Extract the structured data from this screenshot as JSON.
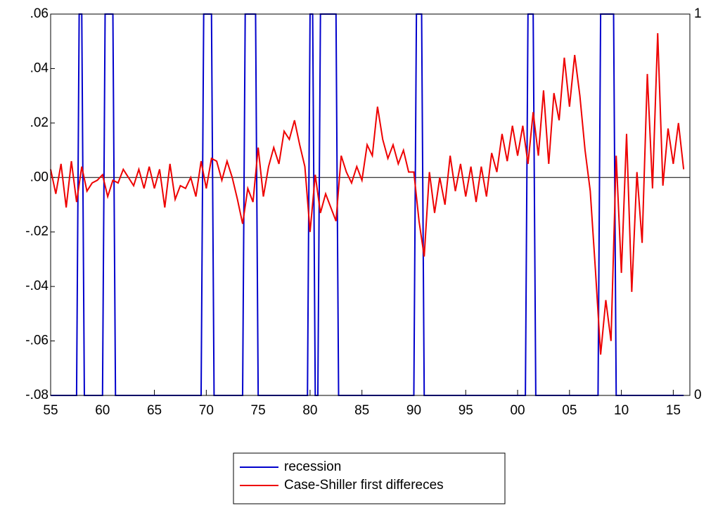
{
  "chart_data": {
    "type": "line",
    "xlim": [
      1955,
      2016.6
    ],
    "xticks": [
      {
        "value": 1955,
        "label": "55"
      },
      {
        "value": 1960,
        "label": "60"
      },
      {
        "value": 1965,
        "label": "65"
      },
      {
        "value": 1970,
        "label": "70"
      },
      {
        "value": 1975,
        "label": "75"
      },
      {
        "value": 1980,
        "label": "80"
      },
      {
        "value": 1985,
        "label": "85"
      },
      {
        "value": 1990,
        "label": "90"
      },
      {
        "value": 1995,
        "label": "95"
      },
      {
        "value": 2000,
        "label": "00"
      },
      {
        "value": 2005,
        "label": "05"
      },
      {
        "value": 2010,
        "label": "10"
      },
      {
        "value": 2015,
        "label": "15"
      }
    ],
    "ylim": [
      -0.08,
      0.06
    ],
    "yticks": [
      {
        "value": 0.06,
        "label": ".06"
      },
      {
        "value": 0.04,
        "label": ".04"
      },
      {
        "value": 0.02,
        "label": ".02"
      },
      {
        "value": 0,
        "label": ".00"
      },
      {
        "value": -0.02,
        "label": "-.02"
      },
      {
        "value": -0.04,
        "label": "-.04"
      },
      {
        "value": -0.06,
        "label": "-.06"
      },
      {
        "value": -0.08,
        "label": "-.08"
      }
    ],
    "y2lim": [
      0,
      1
    ],
    "y2ticks": [
      0,
      1
    ],
    "series": [
      {
        "name": "recession",
        "color": "#0000cc",
        "axis": "y2",
        "x": [
          1955,
          1957.5,
          1957.75,
          1958.0,
          1958.25,
          1960.0,
          1960.25,
          1961.0,
          1961.25,
          1969.5,
          1969.75,
          1970.5,
          1970.75,
          1973.5,
          1973.75,
          1974.75,
          1975.0,
          1979.75,
          1980.0,
          1980.25,
          1980.5,
          1980.75,
          1981.0,
          1982.5,
          1982.75,
          1990.0,
          1990.25,
          1990.75,
          1991.0,
          2000.75,
          2001.0,
          2001.5,
          2001.75,
          2007.75,
          2008.0,
          2009.25,
          2009.5,
          2016.0
        ],
        "values": [
          0,
          0,
          1,
          1,
          0,
          0,
          1,
          1,
          0,
          0,
          1,
          1,
          0,
          0,
          1,
          1,
          0,
          0,
          1,
          1,
          0,
          0,
          1,
          1,
          0,
          0,
          1,
          1,
          0,
          0,
          1,
          1,
          0,
          0,
          1,
          1,
          0,
          0
        ]
      },
      {
        "name": "Case-Shiller first differeces",
        "color": "#ee0000",
        "x": [
          1955,
          1955.5,
          1956,
          1956.5,
          1957,
          1957.5,
          1958,
          1958.5,
          1959,
          1959.5,
          1960,
          1960.5,
          1961,
          1961.5,
          1962,
          1962.5,
          1963,
          1963.5,
          1964,
          1964.5,
          1965,
          1965.5,
          1966,
          1966.5,
          1967,
          1967.5,
          1968,
          1968.5,
          1969,
          1969.5,
          1970,
          1970.5,
          1971,
          1971.5,
          1972,
          1972.5,
          1973,
          1973.5,
          1974,
          1974.5,
          1975,
          1975.5,
          1976,
          1976.5,
          1977,
          1977.5,
          1978,
          1978.5,
          1979,
          1979.5,
          1980,
          1980.5,
          1981,
          1981.5,
          1982,
          1982.5,
          1983,
          1983.5,
          1984,
          1984.5,
          1985,
          1985.5,
          1986,
          1986.5,
          1987,
          1987.5,
          1988,
          1988.5,
          1989,
          1989.5,
          1990,
          1990.5,
          1991,
          1991.5,
          1992,
          1992.5,
          1993,
          1993.5,
          1994,
          1994.5,
          1995,
          1995.5,
          1996,
          1996.5,
          1997,
          1997.5,
          1998,
          1998.5,
          1999,
          1999.5,
          2000,
          2000.5,
          2001,
          2001.5,
          2002,
          2002.5,
          2003,
          2003.5,
          2004,
          2004.5,
          2005,
          2005.5,
          2006,
          2006.5,
          2007,
          2007.5,
          2008,
          2008.5,
          2009,
          2009.5,
          2010,
          2010.5,
          2011,
          2011.5,
          2012,
          2012.5,
          2013,
          2013.5,
          2014,
          2014.5,
          2015,
          2015.5,
          2016
        ],
        "values": [
          0.003,
          -0.006,
          0.005,
          -0.011,
          0.006,
          -0.009,
          0.004,
          -0.005,
          -0.002,
          -0.001,
          0.001,
          -0.007,
          -0.001,
          -0.002,
          0.003,
          0.0,
          -0.003,
          0.003,
          -0.004,
          0.004,
          -0.004,
          0.003,
          -0.011,
          0.005,
          -0.008,
          -0.003,
          -0.004,
          0.0,
          -0.007,
          0.006,
          -0.004,
          0.007,
          0.006,
          -0.001,
          0.006,
          0.0,
          -0.008,
          -0.017,
          -0.004,
          -0.009,
          0.011,
          -0.007,
          0.004,
          0.011,
          0.005,
          0.017,
          0.014,
          0.021,
          0.012,
          0.004,
          -0.02,
          0.001,
          -0.013,
          -0.006,
          -0.011,
          -0.016,
          0.008,
          0.002,
          -0.002,
          0.004,
          -0.001,
          0.012,
          0.008,
          0.026,
          0.014,
          0.007,
          0.012,
          0.005,
          0.01,
          0.002,
          0.002,
          -0.016,
          -0.029,
          0.002,
          -0.013,
          0.0,
          -0.01,
          0.008,
          -0.005,
          0.005,
          -0.007,
          0.004,
          -0.009,
          0.004,
          -0.007,
          0.009,
          0.002,
          0.016,
          0.006,
          0.019,
          0.008,
          0.019,
          0.005,
          0.024,
          0.008,
          0.032,
          0.005,
          0.031,
          0.021,
          0.044,
          0.026,
          0.045,
          0.03,
          0.01,
          -0.005,
          -0.034,
          -0.065,
          -0.045,
          -0.06,
          0.008,
          -0.035,
          0.016,
          -0.042,
          0.002,
          -0.024,
          0.038,
          -0.004,
          0.053,
          -0.003,
          0.018,
          0.005,
          0.02,
          0.003
        ]
      }
    ]
  }
}
